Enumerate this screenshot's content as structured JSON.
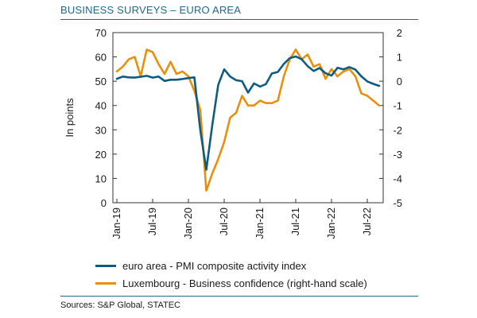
{
  "title": "BUSINESS SURVEYS – EURO AREA",
  "source": "Sources: S&P Global, STATEC",
  "legend": {
    "series1": "euro area - PMI composite activity index",
    "series2": "Luxembourg - Business confidence (right-hand scale)"
  },
  "colors": {
    "euro_area": "#0f5c80",
    "luxembourg": "#e8900c",
    "title": "#1f6a8a"
  },
  "chart_data": {
    "type": "line",
    "title": "BUSINESS SURVEYS – EURO AREA",
    "ylabel": "In points",
    "ylim": [
      0,
      70
    ],
    "y2lim": [
      -5,
      2
    ],
    "yticks": [
      "0",
      "10",
      "20",
      "30",
      "40",
      "50",
      "60",
      "70"
    ],
    "y2ticks": [
      "-5",
      "-4",
      "-3",
      "-2",
      "-1",
      "0",
      "1",
      "2"
    ],
    "xticks": [
      "Jan-19",
      "Jul-19",
      "Jan-20",
      "Jul-20",
      "Jan-21",
      "Jul-21",
      "Jan-22",
      "Jul-22"
    ],
    "grid": false,
    "legend_position": "bottom",
    "x": [
      "Jan-19",
      "Feb-19",
      "Mar-19",
      "Apr-19",
      "May-19",
      "Jun-19",
      "Jul-19",
      "Aug-19",
      "Sep-19",
      "Oct-19",
      "Nov-19",
      "Dec-19",
      "Jan-20",
      "Feb-20",
      "Mar-20",
      "Apr-20",
      "May-20",
      "Jun-20",
      "Jul-20",
      "Aug-20",
      "Sep-20",
      "Oct-20",
      "Nov-20",
      "Dec-20",
      "Jan-21",
      "Feb-21",
      "Mar-21",
      "Apr-21",
      "May-21",
      "Jun-21",
      "Jul-21",
      "Aug-21",
      "Sep-21",
      "Oct-21",
      "Nov-21",
      "Dec-21",
      "Jan-22",
      "Feb-22",
      "Mar-22",
      "Apr-22",
      "May-22",
      "Jun-22",
      "Jul-22",
      "Aug-22",
      "Sep-22"
    ],
    "series": [
      {
        "name": "euro area - PMI composite activity index",
        "axis": "left",
        "values": [
          51.0,
          51.9,
          51.6,
          51.5,
          51.8,
          52.2,
          51.5,
          51.9,
          50.1,
          50.6,
          50.6,
          50.9,
          51.3,
          51.6,
          29.7,
          13.6,
          31.9,
          48.5,
          54.9,
          51.9,
          50.4,
          50.0,
          45.3,
          49.1,
          47.8,
          48.8,
          53.2,
          53.8,
          57.1,
          59.5,
          60.2,
          59.0,
          56.2,
          54.2,
          55.4,
          53.3,
          52.3,
          55.5,
          54.9,
          55.8,
          54.8,
          52.0,
          49.9,
          48.9,
          48.1
        ]
      },
      {
        "name": "Luxembourg - Business confidence (right-hand scale)",
        "axis": "right",
        "values": [
          0.4,
          0.6,
          0.9,
          1.0,
          0.2,
          1.3,
          1.2,
          0.7,
          0.3,
          0.8,
          0.3,
          0.4,
          0.2,
          -0.4,
          -1.2,
          -4.5,
          -3.8,
          -3.2,
          -2.5,
          -1.5,
          -1.3,
          -0.6,
          -1.0,
          -1.0,
          -0.8,
          -0.9,
          -0.9,
          -0.8,
          0.2,
          0.9,
          1.3,
          0.9,
          1.1,
          0.6,
          0.7,
          0.1,
          0.5,
          0.2,
          0.4,
          0.5,
          0.2,
          -0.5,
          -0.6,
          -0.8,
          -1.0
        ]
      }
    ]
  }
}
